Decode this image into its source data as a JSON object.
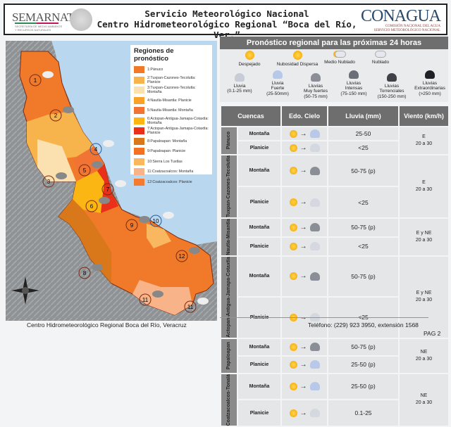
{
  "header": {
    "logo_left": "SEMARNAT",
    "logo_left_sub": "SECRETARÍA DE MEDIO AMBIENTE Y RECURSOS NATURALES",
    "title_line1": "Servicio Meteorológico Nacional",
    "title_line2": "Centro Hidrometeorológico Regional “Boca del Río, Ver.”",
    "logo_right": "CONAGUA",
    "logo_right_sub1": "COMISIÓN NACIONAL DEL AGUA",
    "logo_right_sub2": "SERVICIO METEOROLÓGICO NACIONAL"
  },
  "map": {
    "legend_title": "Regiones de pronóstico",
    "legend": [
      {
        "label": "1:Pánuco",
        "color": "#f07a2a"
      },
      {
        "label": "2:Tuxpan-Cazones-Tecolutla: Planicie",
        "color": "#f8b44c"
      },
      {
        "label": "3:Tuxpan-Cazones-Tecolutla: Montaña",
        "color": "#fbe0b0"
      },
      {
        "label": "4:Nautla-Misantla: Planicie",
        "color": "#f9a22a"
      },
      {
        "label": "5:Nautla-Misantla: Montaña",
        "color": "#f27434"
      },
      {
        "label": "6:Actopan-Antigua-Jamapa-Cotaxtla: Montaña",
        "color": "#fbb614"
      },
      {
        "label": "7:Actopan-Antigua-Jamapa-Cotaxtla: Planicie",
        "color": "#e8301a"
      },
      {
        "label": "8:Papaloapan: Montaña",
        "color": "#d9781a"
      },
      {
        "label": "9:Papaloapan: Planicie",
        "color": "#f37222"
      },
      {
        "label": "10:Sierra Los Tuxtlas",
        "color": "#f9b860"
      },
      {
        "label": "11:Coatzacoalcos: Montaña",
        "color": "#f8b488"
      },
      {
        "label": "12:Coatzacoalcos: Planicie",
        "color": "#f47a30"
      }
    ],
    "region_numbers": [
      "1",
      "2",
      "3",
      "4",
      "5",
      "6",
      "7",
      "8",
      "9",
      "10",
      "11",
      "12",
      "11"
    ]
  },
  "panel": {
    "title": "Pronóstico regional para las próximas 24 horas",
    "sky_icons": [
      {
        "label": "Despejado",
        "icon": "sun-icon"
      },
      {
        "label": "Nubosidad Dispersa",
        "icon": "sun-icon"
      },
      {
        "label": "Medio Nublado",
        "icon": "partly-cloudy-icon"
      },
      {
        "label": "Nublado",
        "icon": "cloudy-icon"
      }
    ],
    "rain_icons": [
      {
        "l1": "Lluvia",
        "l2": "",
        "l3": "(0.1-25 mm)",
        "color": "#c8ccd8"
      },
      {
        "l1": "Lluvia",
        "l2": "Fuerte",
        "l3": "(25-50mm)",
        "color": "#b8c8e8"
      },
      {
        "l1": "Lluvias",
        "l2": "Muy fuertes",
        "l3": "(50-75 mm)",
        "color": "#8a8e96"
      },
      {
        "l1": "Lluvias",
        "l2": "Intensas",
        "l3": "(75-150 mm)",
        "color": "#6a6e76"
      },
      {
        "l1": "Lluvias",
        "l2": "Torrenciales",
        "l3": "(150-250 mm)",
        "color": "#3e4248"
      },
      {
        "l1": "Lluvias",
        "l2": "Extraordinarias",
        "l3": "(>250 mm)",
        "color": "#1e2226"
      }
    ],
    "headers": {
      "cuencas": "Cuencas",
      "cielo": "Edo. Cielo",
      "lluvia": "Lluvia (mm)",
      "viento": "Viento (km/h)"
    },
    "arrow": "→",
    "rows": [
      {
        "cuenca": "Pánuco",
        "viento": "E",
        "viento2": "20 a 30",
        "m": {
          "label": "Montaña",
          "lluvia": "25-50",
          "to": "#b8c8e8"
        },
        "p": {
          "label": "Planicie",
          "lluvia": "<25",
          "to": "#d4d8e0"
        }
      },
      {
        "cuenca": "Tuxpan-Cazones-Tecolutla",
        "viento": "E",
        "viento2": "20 a 30",
        "m": {
          "label": "Montaña",
          "lluvia": "50-75 (p)",
          "to": "#8a8e96"
        },
        "p": {
          "label": "Planicie",
          "lluvia": "<25",
          "to": "#d4d8e0"
        }
      },
      {
        "cuenca": "Nautla-Misantla",
        "viento": "E y NE",
        "viento2": "20 a 30",
        "m": {
          "label": "Montaña",
          "lluvia": "50-75 (p)",
          "to": "#8a8e96"
        },
        "p": {
          "label": "Planicie",
          "lluvia": "<25",
          "to": "#d4d8e0"
        }
      },
      {
        "cuenca": "Actopan-Antigua-Jamapa-Cotaxtla",
        "viento": "E y NE",
        "viento2": "20 a 30",
        "m": {
          "label": "Montaña",
          "lluvia": "50-75 (p)",
          "to": "#8a8e96"
        },
        "p": {
          "label": "Planicie",
          "lluvia": "<25",
          "to": "#d4d8e0"
        }
      },
      {
        "cuenca": "Papaloapan",
        "viento": "NE",
        "viento2": "20 a 30",
        "m": {
          "label": "Montaña",
          "lluvia": "50-75 (p)",
          "to": "#8a8e96"
        },
        "p": {
          "label": "Planicie",
          "lluvia": "25-50 (p)",
          "to": "#b8c8e8"
        }
      },
      {
        "cuenca": "Coatzacoalcos-Tonalá",
        "viento": "NE",
        "viento2": "20 a 30",
        "m": {
          "label": "Montaña",
          "lluvia": "25-50 (p)",
          "to": "#b8c8e8"
        },
        "p": {
          "label": "Planicie",
          "lluvia": "0.1-25",
          "to": "#d4d8e0"
        }
      }
    ]
  },
  "footer": {
    "left": "Centro Hidrometeorológico Regional Boca del Río, Veracruz",
    "right": "Teléfono: (229) 923 3950, extensión 1568",
    "page": "PAG 2"
  }
}
